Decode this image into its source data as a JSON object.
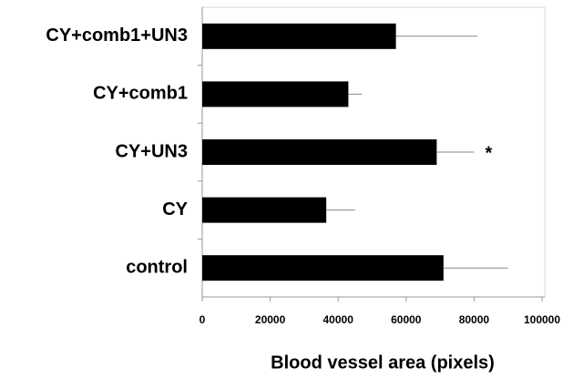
{
  "chart_data": {
    "type": "bar",
    "orientation": "horizontal",
    "categories": [
      "CY+comb1+UN3",
      "CY+comb1",
      "CY+UN3",
      "CY",
      "control"
    ],
    "values": [
      57000,
      43000,
      69000,
      36500,
      71000
    ],
    "errors": [
      24000,
      4000,
      11000,
      8500,
      19000
    ],
    "color": "#000000",
    "xlabel": "Blood vessel area (pixels)",
    "xlim": [
      0,
      100000
    ],
    "xticks": [
      0,
      20000,
      40000,
      60000,
      80000,
      100000
    ],
    "annotations": [
      {
        "text": "*",
        "category": "CY+UN3"
      }
    ]
  }
}
